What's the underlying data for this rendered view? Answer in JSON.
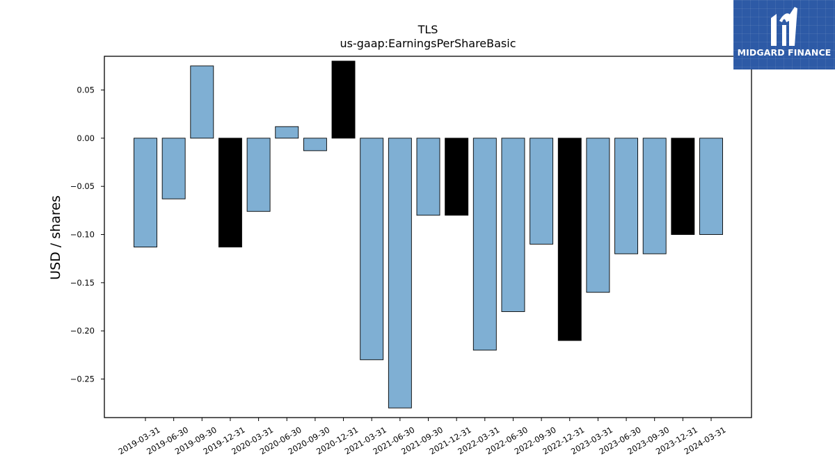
{
  "brand": {
    "name": "MIDGARD FINANCE"
  },
  "colors": {
    "bar_default": "#7fafd3",
    "bar_highlight": "#000000",
    "logo_bg": "#2d5aa6"
  },
  "chart_data": {
    "type": "bar",
    "title": "TLS",
    "subtitle": "us-gaap:EarningsPerShareBasic",
    "ylabel": "USD / shares",
    "xlabel": "",
    "ylim": [
      -0.29,
      0.085
    ],
    "yticks": [
      0.05,
      0.0,
      -0.05,
      -0.1,
      -0.15,
      -0.2,
      -0.25
    ],
    "ytick_labels": [
      "0.05",
      "0.00",
      "−0.05",
      "−0.10",
      "−0.15",
      "−0.20",
      "−0.25"
    ],
    "grid": false,
    "legend": "none",
    "categories": [
      "2019-03-31",
      "2019-06-30",
      "2019-09-30",
      "2019-12-31",
      "2020-03-31",
      "2020-06-30",
      "2020-09-30",
      "2020-12-31",
      "2021-03-31",
      "2021-06-30",
      "2021-09-30",
      "2021-12-31",
      "2022-03-31",
      "2022-06-30",
      "2022-09-30",
      "2022-12-31",
      "2023-03-31",
      "2023-06-30",
      "2023-09-30",
      "2023-12-31",
      "2024-03-31"
    ],
    "values": [
      -0.113,
      -0.063,
      0.075,
      -0.113,
      -0.076,
      0.012,
      -0.013,
      0.08,
      -0.23,
      -0.28,
      -0.08,
      -0.08,
      -0.22,
      -0.18,
      -0.11,
      -0.21,
      -0.16,
      -0.12,
      -0.12,
      -0.1,
      -0.1
    ],
    "highlight_categories": [
      "2019-12-31",
      "2020-12-31",
      "2021-12-31",
      "2022-12-31",
      "2023-12-31"
    ]
  }
}
